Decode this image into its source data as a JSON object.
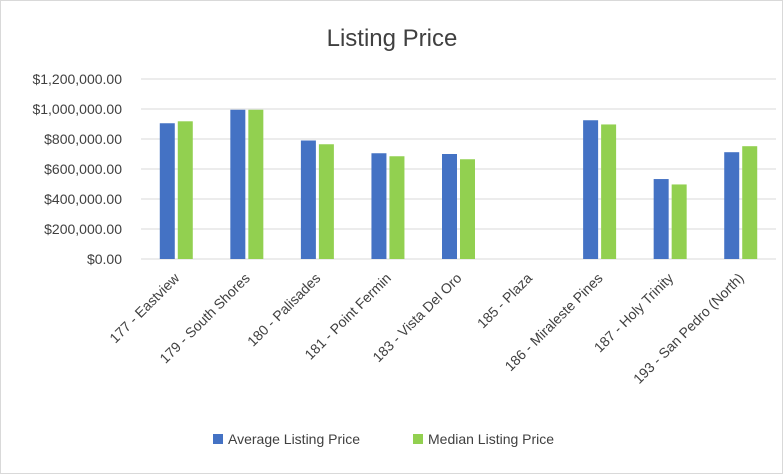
{
  "chart_data": {
    "type": "bar",
    "title": "Listing Price",
    "xlabel": "",
    "ylabel": "",
    "categories": [
      "177 - Eastview",
      "179 - South Shores",
      "180 - Palisades",
      "181 - Point Fermin",
      "183 - Vista Del Oro",
      "185 - Plaza",
      "186 - Miraleste Pines",
      "187 - Holy Trinity",
      "193 - San Pedro (North)"
    ],
    "series": [
      {
        "name": "Average Listing Price",
        "color": "#4472c4",
        "values": [
          905000,
          995000,
          790000,
          705000,
          700000,
          0,
          925000,
          533000,
          712000
        ]
      },
      {
        "name": "Median Listing Price",
        "color": "#92d050",
        "values": [
          918000,
          995000,
          765000,
          685000,
          665000,
          0,
          897000,
          497000,
          752000
        ]
      }
    ],
    "yticks": [
      "$0.00",
      "$200,000.00",
      "$400,000.00",
      "$600,000.00",
      "$800,000.00",
      "$1,000,000.00",
      "$1,200,000.00"
    ],
    "ylim": [
      0,
      1200000
    ],
    "grid": true,
    "legend_position": "bottom"
  }
}
